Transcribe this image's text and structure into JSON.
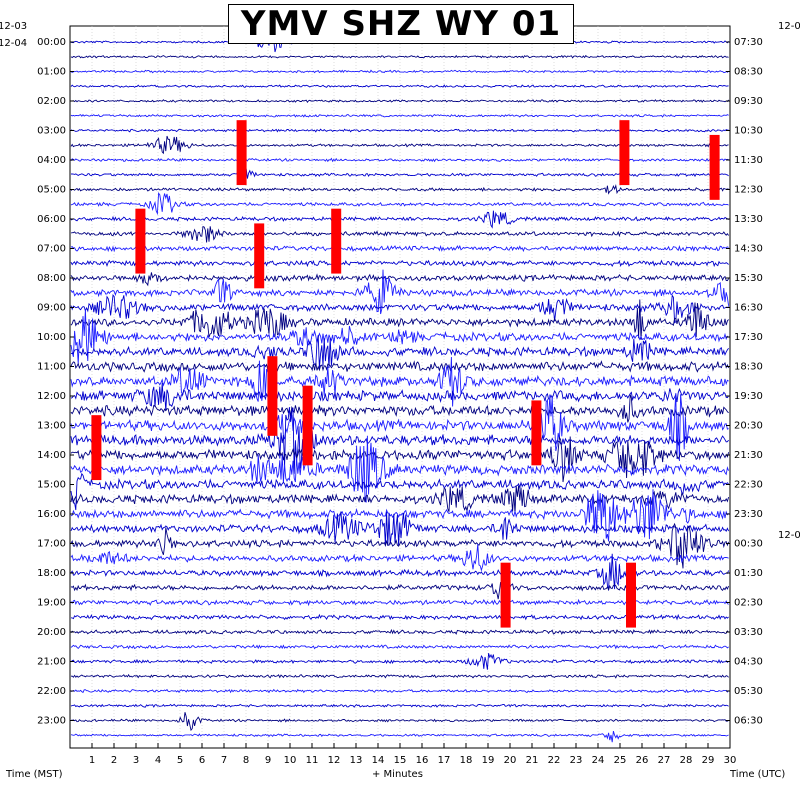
{
  "chart_data": {
    "type": "heatmap",
    "title": "YMV SHZ WY 01",
    "xlabel": "+ Minutes",
    "left_axis_label": "Time (MST)",
    "right_axis_label": "Time (UTC)",
    "x_ticks": [
      1,
      2,
      3,
      4,
      5,
      6,
      7,
      8,
      9,
      10,
      11,
      12,
      13,
      14,
      15,
      16,
      17,
      18,
      19,
      20,
      21,
      22,
      23,
      24,
      25,
      26,
      27,
      28,
      29,
      30
    ],
    "xlim": [
      0,
      30
    ],
    "left_date_labels": [
      "12-03",
      "12-04"
    ],
    "right_date_labels": [
      "12-0",
      "12-0"
    ],
    "left_hour_labels": [
      "00:00",
      "01:00",
      "02:00",
      "03:00",
      "04:00",
      "05:00",
      "06:00",
      "07:00",
      "08:00",
      "09:00",
      "10:00",
      "11:00",
      "12:00",
      "13:00",
      "14:00",
      "15:00",
      "16:00",
      "17:00",
      "18:00",
      "19:00",
      "20:00",
      "21:00",
      "22:00",
      "23:00"
    ],
    "right_hour_labels": [
      "07:30",
      "08:30",
      "09:30",
      "10:30",
      "11:30",
      "12:30",
      "13:30",
      "14:30",
      "15:30",
      "16:30",
      "17:30",
      "18:30",
      "19:30",
      "20:30",
      "21:30",
      "22:30",
      "23:30",
      "00:30",
      "01:30",
      "02:30",
      "03:30",
      "04:30",
      "05:30",
      "06:30"
    ],
    "trace_colors": [
      "#0000cd",
      "#000080",
      "#1e1eff"
    ],
    "clip_color": "#ff0000",
    "traces_per_hour": 2,
    "grid": true,
    "clipped_events": [
      {
        "row": 6,
        "minute": 7.8,
        "rows": 4
      },
      {
        "row": 6,
        "minute": 25.2,
        "rows": 4
      },
      {
        "row": 7,
        "minute": 29.3,
        "rows": 4
      },
      {
        "row": 12,
        "minute": 3.2,
        "rows": 4
      },
      {
        "row": 12,
        "minute": 12.1,
        "rows": 4
      },
      {
        "row": 13,
        "minute": 8.6,
        "rows": 4
      },
      {
        "row": 22,
        "minute": 9.2,
        "rows": 5
      },
      {
        "row": 24,
        "minute": 10.8,
        "rows": 5
      },
      {
        "row": 25,
        "minute": 21.2,
        "rows": 4
      },
      {
        "row": 26,
        "minute": 1.2,
        "rows": 4
      },
      {
        "row": 36,
        "minute": 19.8,
        "rows": 4
      },
      {
        "row": 36,
        "minute": 25.5,
        "rows": 4
      }
    ]
  }
}
